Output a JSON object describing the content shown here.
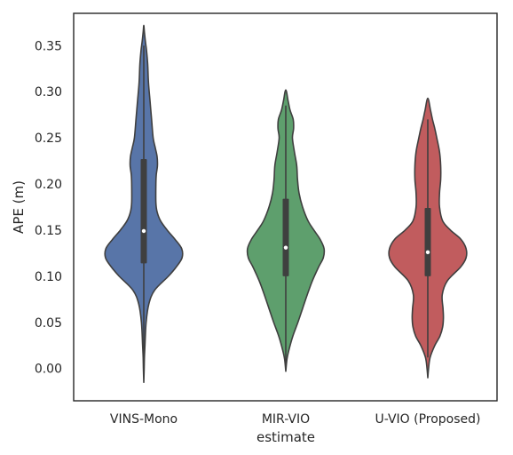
{
  "chart_data": {
    "type": "violin",
    "title": "",
    "xlabel": "estimate",
    "ylabel": "APE (m)",
    "ylim": [
      -0.035,
      0.385
    ],
    "yticks": [
      0.0,
      0.05,
      0.1,
      0.15,
      0.2,
      0.25,
      0.3,
      0.35
    ],
    "grid": false,
    "legend": "none",
    "categories": [
      "VINS-Mono",
      "MIR-VIO",
      "U-VIO (Proposed)"
    ],
    "series": [
      {
        "category": "VINS-Mono",
        "color": "#5875A8",
        "median": 0.149,
        "q1": 0.114,
        "q3": 0.227,
        "whisker_low": 0.012,
        "whisker_high": 0.35,
        "density": [
          [
            -0.015,
            0.0
          ],
          [
            0.0,
            0.01
          ],
          [
            0.012,
            0.016
          ],
          [
            0.025,
            0.03
          ],
          [
            0.05,
            0.06
          ],
          [
            0.07,
            0.13
          ],
          [
            0.085,
            0.28
          ],
          [
            0.1,
            0.63
          ],
          [
            0.11,
            0.83
          ],
          [
            0.12,
            0.98
          ],
          [
            0.13,
            0.97
          ],
          [
            0.14,
            0.8
          ],
          [
            0.15,
            0.6
          ],
          [
            0.16,
            0.43
          ],
          [
            0.17,
            0.34
          ],
          [
            0.18,
            0.31
          ],
          [
            0.2,
            0.31
          ],
          [
            0.21,
            0.32
          ],
          [
            0.22,
            0.35
          ],
          [
            0.23,
            0.34
          ],
          [
            0.24,
            0.29
          ],
          [
            0.25,
            0.24
          ],
          [
            0.27,
            0.2
          ],
          [
            0.29,
            0.16
          ],
          [
            0.31,
            0.12
          ],
          [
            0.33,
            0.1
          ],
          [
            0.345,
            0.07
          ],
          [
            0.355,
            0.04
          ],
          [
            0.365,
            0.015
          ],
          [
            0.372,
            0.0
          ]
        ]
      },
      {
        "category": "MIR-VIO",
        "color": "#5E9F6D",
        "median": 0.131,
        "q1": 0.1,
        "q3": 0.184,
        "whisker_low": 0.005,
        "whisker_high": 0.285,
        "density": [
          [
            -0.003,
            0.0
          ],
          [
            0.01,
            0.03
          ],
          [
            0.02,
            0.08
          ],
          [
            0.035,
            0.18
          ],
          [
            0.05,
            0.31
          ],
          [
            0.065,
            0.43
          ],
          [
            0.08,
            0.55
          ],
          [
            0.095,
            0.68
          ],
          [
            0.11,
            0.84
          ],
          [
            0.12,
            0.96
          ],
          [
            0.13,
            0.98
          ],
          [
            0.14,
            0.88
          ],
          [
            0.15,
            0.72
          ],
          [
            0.16,
            0.57
          ],
          [
            0.175,
            0.43
          ],
          [
            0.19,
            0.34
          ],
          [
            0.205,
            0.3
          ],
          [
            0.22,
            0.28
          ],
          [
            0.235,
            0.22
          ],
          [
            0.25,
            0.17
          ],
          [
            0.26,
            0.2
          ],
          [
            0.27,
            0.19
          ],
          [
            0.28,
            0.11
          ],
          [
            0.29,
            0.06
          ],
          [
            0.302,
            0.0
          ]
        ]
      },
      {
        "category": "U-VIO (Proposed)",
        "color": "#C15C5E",
        "median": 0.126,
        "q1": 0.1,
        "q3": 0.174,
        "whisker_low": 0.012,
        "whisker_high": 0.27,
        "density": [
          [
            -0.01,
            0.0
          ],
          [
            0.0,
            0.02
          ],
          [
            0.012,
            0.06
          ],
          [
            0.025,
            0.18
          ],
          [
            0.035,
            0.31
          ],
          [
            0.045,
            0.38
          ],
          [
            0.055,
            0.4
          ],
          [
            0.065,
            0.39
          ],
          [
            0.08,
            0.37
          ],
          [
            0.095,
            0.5
          ],
          [
            0.11,
            0.84
          ],
          [
            0.12,
            0.98
          ],
          [
            0.13,
            0.98
          ],
          [
            0.14,
            0.85
          ],
          [
            0.15,
            0.58
          ],
          [
            0.16,
            0.38
          ],
          [
            0.175,
            0.3
          ],
          [
            0.19,
            0.3
          ],
          [
            0.205,
            0.33
          ],
          [
            0.22,
            0.33
          ],
          [
            0.235,
            0.3
          ],
          [
            0.25,
            0.23
          ],
          [
            0.26,
            0.18
          ],
          [
            0.27,
            0.12
          ],
          [
            0.28,
            0.07
          ],
          [
            0.293,
            0.0
          ]
        ]
      }
    ]
  }
}
